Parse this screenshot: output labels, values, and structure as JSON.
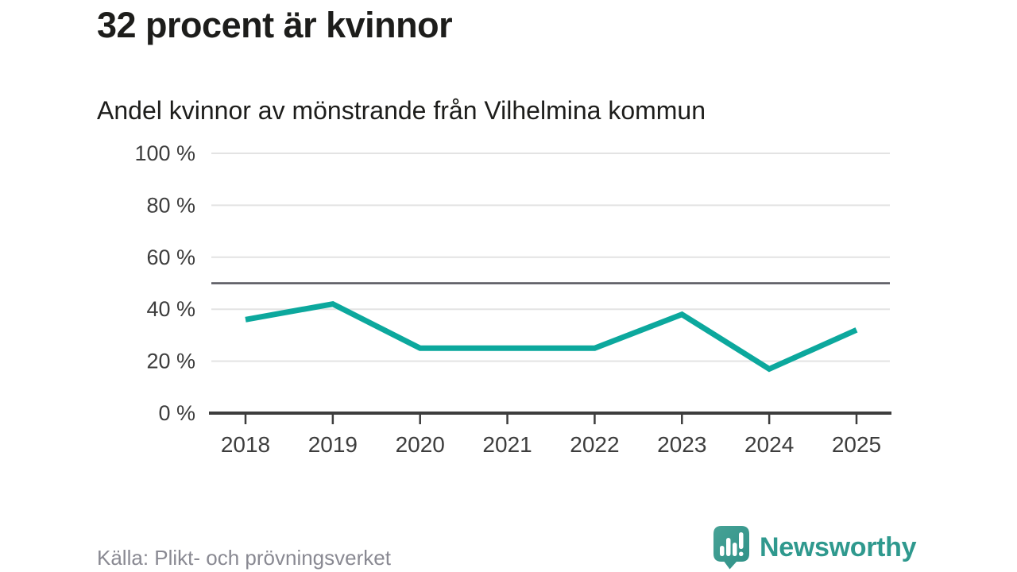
{
  "header": {
    "title": "32 procent är kvinnor",
    "subtitle": "Andel kvinnor av mönstrande från Vilhelmina kommun"
  },
  "chart_data": {
    "type": "line",
    "categories": [
      "2018",
      "2019",
      "2020",
      "2021",
      "2022",
      "2023",
      "2024",
      "2025"
    ],
    "values": [
      36,
      42,
      25,
      25,
      25,
      38,
      17,
      32
    ],
    "title": "32 procent är kvinnor",
    "subtitle": "Andel kvinnor av mönstrande från Vilhelmina kommun",
    "xlabel": "",
    "ylabel": "",
    "ylim": [
      0,
      100
    ],
    "yticks": [
      0,
      20,
      40,
      60,
      80,
      100
    ],
    "ytick_suffix": " %",
    "reference_line": 50,
    "grid": true,
    "legend": "none",
    "line_color": "#0ca89d"
  },
  "footer": {
    "source": "Källa: Plikt- och prövningsverket",
    "logo_text": "Newsworthy"
  },
  "icons": {
    "logo_icon": "newsworthy-speech-bubble-chart-icon"
  },
  "colors": {
    "accent": "#0ca89d",
    "logo_icon_top": "#47a296",
    "logo_icon_bottom": "#2e9187",
    "logo_text": "#2f998e",
    "text": "#1d1d1b",
    "axis": "#3d3d3d",
    "muted": "#898992",
    "grid": "#e3e3e3",
    "reference": "#55555d",
    "background": "#ffffff"
  }
}
